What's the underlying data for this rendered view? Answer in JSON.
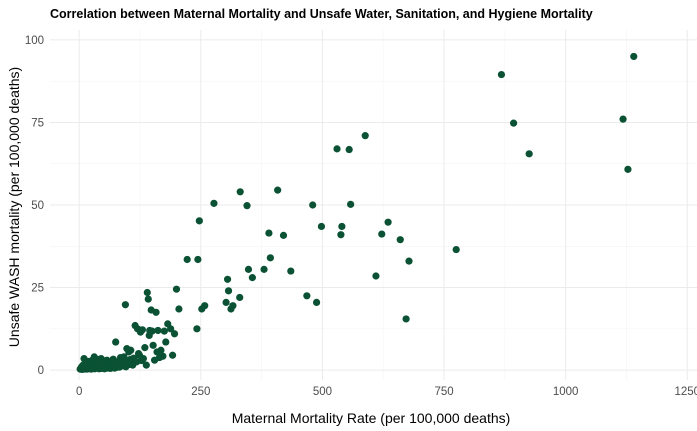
{
  "chart_data": {
    "type": "scatter",
    "title": "Correlation between Maternal Mortality and Unsafe Water, Sanitation, and Hygiene Mortality",
    "xlabel": "Maternal Mortality Rate (per 100,000 deaths)",
    "ylabel": "Unsafe WASH mortality (per 100,000 deaths)",
    "xlim": [
      -60,
      1270
    ],
    "ylim": [
      -3,
      103
    ],
    "x_ticks": [
      0,
      250,
      500,
      750,
      1000,
      1250
    ],
    "y_ticks": [
      0,
      25,
      50,
      75,
      100
    ],
    "grid": true,
    "point_color": "#0b5234",
    "points": [
      [
        2,
        0.3
      ],
      [
        4,
        0.5
      ],
      [
        5,
        1.0
      ],
      [
        6,
        0.2
      ],
      [
        7,
        0.6
      ],
      [
        8,
        1.5
      ],
      [
        9,
        0.4
      ],
      [
        10,
        0.8
      ],
      [
        10,
        3.5
      ],
      [
        11,
        0.3
      ],
      [
        12,
        1.2
      ],
      [
        13,
        2.0
      ],
      [
        14,
        0.5
      ],
      [
        15,
        0.9
      ],
      [
        16,
        0.3
      ],
      [
        17,
        1.8
      ],
      [
        18,
        0.6
      ],
      [
        19,
        2.6
      ],
      [
        20,
        1.0
      ],
      [
        21,
        0.4
      ],
      [
        22,
        1.5
      ],
      [
        23,
        0.7
      ],
      [
        24,
        2.2
      ],
      [
        25,
        0.3
      ],
      [
        26,
        1.1
      ],
      [
        27,
        3.0
      ],
      [
        28,
        0.5
      ],
      [
        29,
        1.7
      ],
      [
        30,
        0.9
      ],
      [
        31,
        4.0
      ],
      [
        32,
        0.4
      ],
      [
        33,
        1.3
      ],
      [
        34,
        2.5
      ],
      [
        35,
        0.6
      ],
      [
        36,
        1.0
      ],
      [
        37,
        3.2
      ],
      [
        38,
        0.8
      ],
      [
        40,
        1.5
      ],
      [
        41,
        0.4
      ],
      [
        42,
        2.0
      ],
      [
        43,
        0.9
      ],
      [
        44,
        1.2
      ],
      [
        45,
        3.5
      ],
      [
        46,
        0.5
      ],
      [
        48,
        1.8
      ],
      [
        49,
        0.7
      ],
      [
        50,
        2.3
      ],
      [
        51,
        1.0
      ],
      [
        52,
        0.4
      ],
      [
        53,
        1.6
      ],
      [
        54,
        2.8
      ],
      [
        55,
        0.8
      ],
      [
        56,
        1.3
      ],
      [
        57,
        3.0
      ],
      [
        58,
        0.6
      ],
      [
        59,
        1.1
      ],
      [
        60,
        2.0
      ],
      [
        62,
        0.9
      ],
      [
        63,
        1.5
      ],
      [
        64,
        0.5
      ],
      [
        65,
        2.6
      ],
      [
        66,
        1.2
      ],
      [
        68,
        0.7
      ],
      [
        69,
        1.9
      ],
      [
        70,
        3.3
      ],
      [
        72,
        1.0
      ],
      [
        73,
        0.6
      ],
      [
        74,
        2.2
      ],
      [
        75,
        8.5
      ],
      [
        76,
        1.4
      ],
      [
        77,
        0.8
      ],
      [
        78,
        1.8
      ],
      [
        80,
        2.5
      ],
      [
        82,
        1.1
      ],
      [
        83,
        0.9
      ],
      [
        85,
        3.8
      ],
      [
        86,
        1.6
      ],
      [
        88,
        2.0
      ],
      [
        90,
        1.3
      ],
      [
        92,
        4.0
      ],
      [
        94,
        2.4
      ],
      [
        95,
        19.8
      ],
      [
        96,
        1.0
      ],
      [
        98,
        6.5
      ],
      [
        100,
        2.8
      ],
      [
        102,
        5.5
      ],
      [
        103,
        1.7
      ],
      [
        105,
        3.2
      ],
      [
        106,
        6.0
      ],
      [
        108,
        2.1
      ],
      [
        110,
        1.5
      ],
      [
        112,
        3.6
      ],
      [
        115,
        13.5
      ],
      [
        118,
        2.5
      ],
      [
        120,
        12.5
      ],
      [
        122,
        5.0
      ],
      [
        124,
        4.5
      ],
      [
        126,
        11.5
      ],
      [
        128,
        2.9
      ],
      [
        130,
        12.2
      ],
      [
        132,
        3.5
      ],
      [
        135,
        6.8
      ],
      [
        138,
        1.5
      ],
      [
        140,
        23.5
      ],
      [
        142,
        21.5
      ],
      [
        144,
        10.5
      ],
      [
        145,
        12.0
      ],
      [
        148,
        18.2
      ],
      [
        150,
        11.8
      ],
      [
        152,
        7.5
      ],
      [
        155,
        3.0
      ],
      [
        158,
        17.5
      ],
      [
        160,
        5.5
      ],
      [
        162,
        12.0
      ],
      [
        165,
        3.8
      ],
      [
        168,
        6.0
      ],
      [
        172,
        4.2
      ],
      [
        175,
        11.8
      ],
      [
        178,
        8.5
      ],
      [
        182,
        14.0
      ],
      [
        188,
        12.5
      ],
      [
        192,
        4.5
      ],
      [
        196,
        11.0
      ],
      [
        200,
        24.5
      ],
      [
        205,
        18.5
      ],
      [
        222,
        33.5
      ],
      [
        242,
        12.5
      ],
      [
        244,
        33.5
      ],
      [
        247,
        45.2
      ],
      [
        252,
        18.5
      ],
      [
        258,
        19.5
      ],
      [
        277,
        50.5
      ],
      [
        302,
        20.5
      ],
      [
        305,
        27.5
      ],
      [
        307,
        24.0
      ],
      [
        312,
        18.5
      ],
      [
        316,
        19.5
      ],
      [
        330,
        22.0
      ],
      [
        331,
        54.0
      ],
      [
        345,
        49.8
      ],
      [
        348,
        30.5
      ],
      [
        356,
        28.0
      ],
      [
        380,
        30.5
      ],
      [
        390,
        41.5
      ],
      [
        393,
        34.0
      ],
      [
        408,
        54.5
      ],
      [
        420,
        40.8
      ],
      [
        435,
        30.0
      ],
      [
        468,
        22.5
      ],
      [
        480,
        50.0
      ],
      [
        488,
        20.5
      ],
      [
        498,
        43.5
      ],
      [
        530,
        67.0
      ],
      [
        538,
        41.0
      ],
      [
        540,
        43.5
      ],
      [
        555,
        66.8
      ],
      [
        558,
        50.2
      ],
      [
        588,
        71.0
      ],
      [
        610,
        28.5
      ],
      [
        622,
        41.2
      ],
      [
        635,
        44.8
      ],
      [
        660,
        39.5
      ],
      [
        672,
        15.5
      ],
      [
        678,
        33.0
      ],
      [
        775,
        36.5
      ],
      [
        868,
        89.5
      ],
      [
        893,
        74.8
      ],
      [
        925,
        65.5
      ],
      [
        1118,
        76.0
      ],
      [
        1128,
        60.8
      ],
      [
        1140,
        95.0
      ]
    ]
  }
}
